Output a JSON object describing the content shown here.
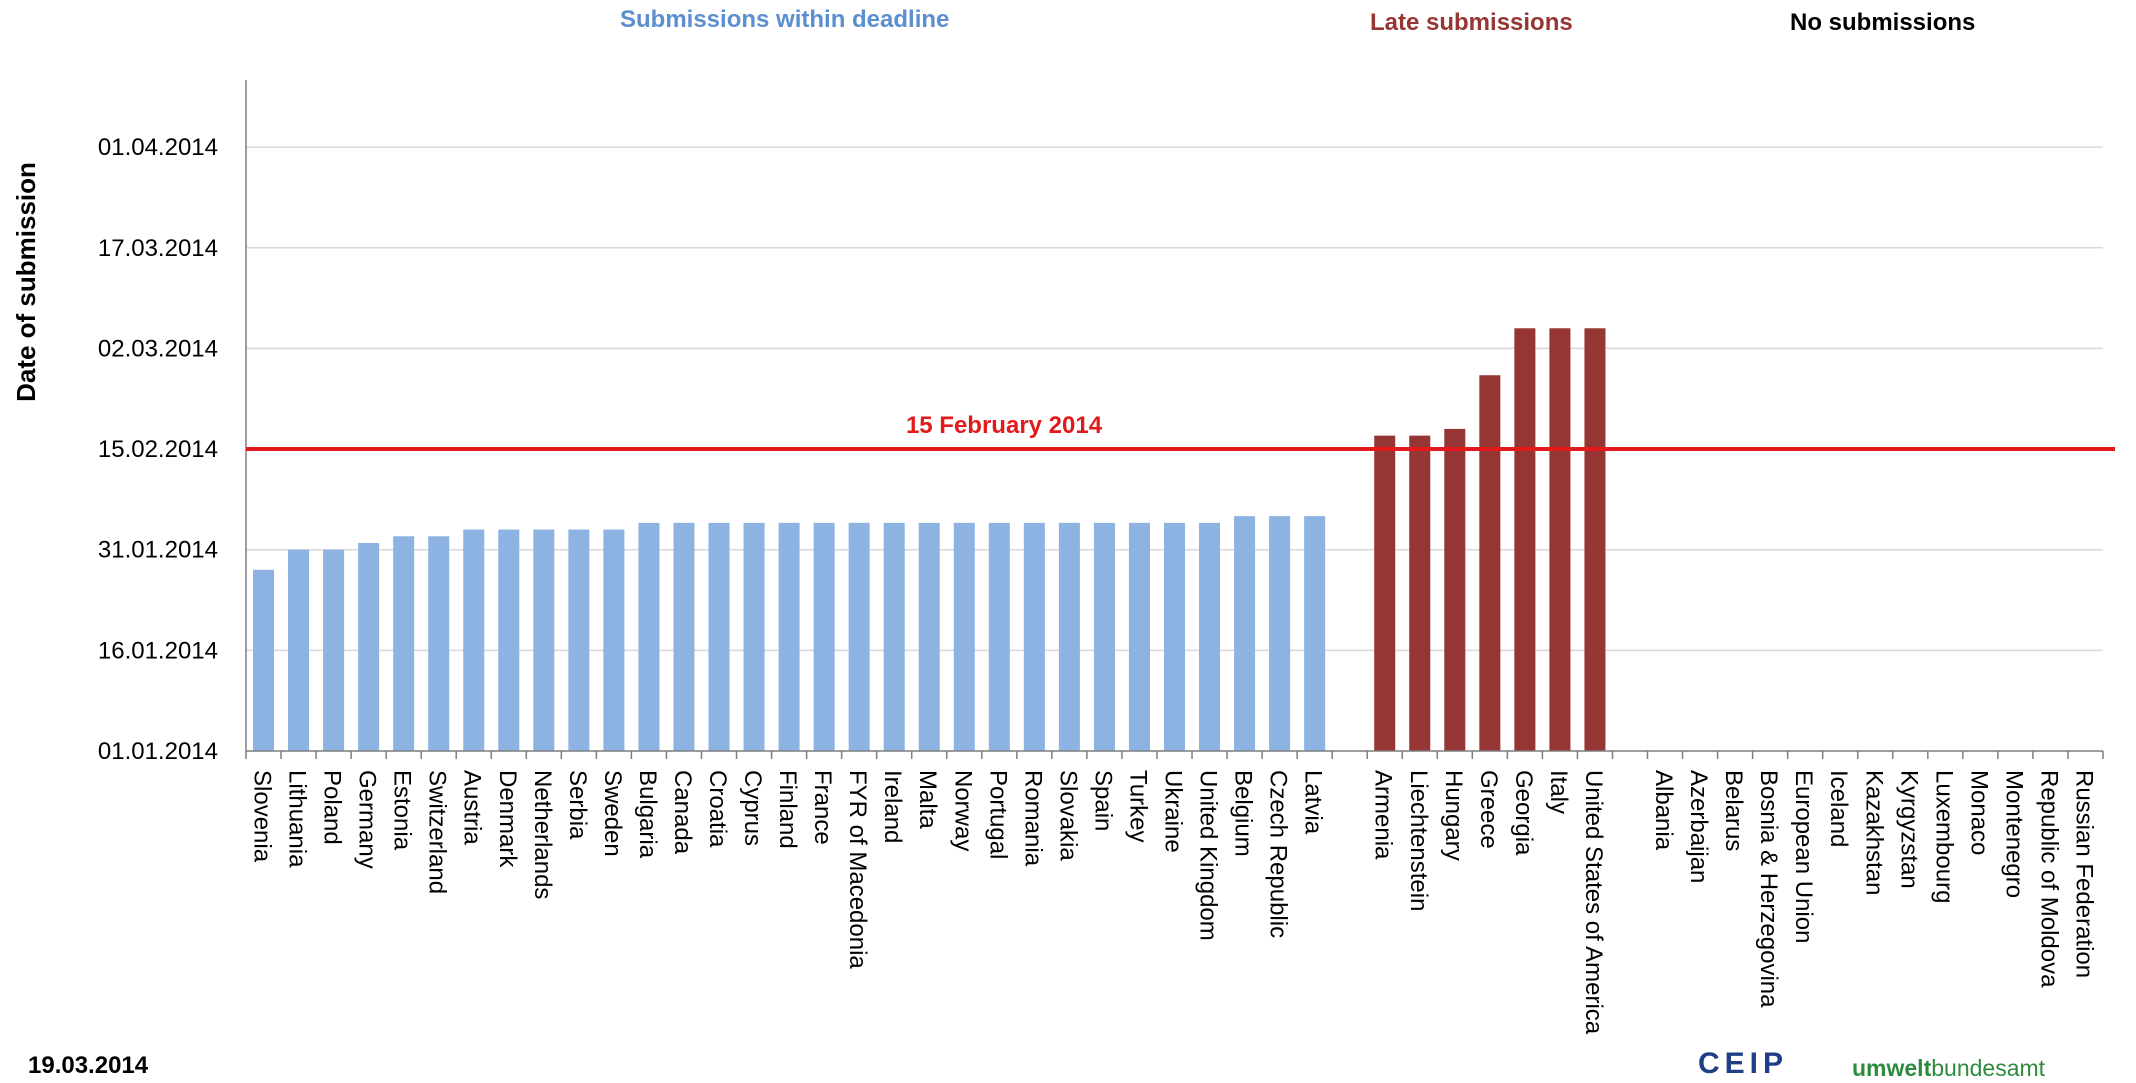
{
  "chart_data": {
    "type": "bar",
    "ylabel": "Date of submission",
    "y_ticks": [
      "01.01.2014",
      "16.01.2014",
      "31.01.2014",
      "15.02.2014",
      "02.03.2014",
      "17.03.2014",
      "01.04.2014"
    ],
    "ylim": [
      "2014-01-01",
      "2014-04-11"
    ],
    "deadline": {
      "date": "2014-02-15",
      "label": "15 February 2014",
      "color": "#e31a1c"
    },
    "grid": true,
    "groups": [
      {
        "name": "Submissions within deadline",
        "color": "#8db3e2",
        "title_color": "#5b8fd0",
        "categories": [
          "Slovenia",
          "Lithuania",
          "Poland",
          "Germany",
          "Estonia",
          "Switzerland",
          "Austria",
          "Denmark",
          "Netherlands",
          "Serbia",
          "Sweden",
          "Bulgaria",
          "Canada",
          "Croatia",
          "Cyprus",
          "Finland",
          "France",
          "FYR of Macedonia",
          "Ireland",
          "Malta",
          "Norway",
          "Portugal",
          "Romania",
          "Slovakia",
          "Spain",
          "Turkey",
          "Ukraine",
          "United Kingdom",
          "Belgium",
          "Czech Republic",
          "Latvia"
        ],
        "values": [
          "2014-01-28",
          "2014-01-31",
          "2014-01-31",
          "2014-02-01",
          "2014-02-02",
          "2014-02-02",
          "2014-02-03",
          "2014-02-03",
          "2014-02-03",
          "2014-02-03",
          "2014-02-03",
          "2014-02-04",
          "2014-02-04",
          "2014-02-04",
          "2014-02-04",
          "2014-02-04",
          "2014-02-04",
          "2014-02-04",
          "2014-02-04",
          "2014-02-04",
          "2014-02-04",
          "2014-02-04",
          "2014-02-04",
          "2014-02-04",
          "2014-02-04",
          "2014-02-04",
          "2014-02-04",
          "2014-02-04",
          "2014-02-05",
          "2014-02-05",
          "2014-02-05"
        ]
      },
      {
        "name": "Late submissions",
        "color": "#963634",
        "title_color": "#963634",
        "categories": [
          "Armenia",
          "Liechtenstein",
          "Hungary",
          "Greece",
          "Georgia",
          "Italy",
          "United States of America"
        ],
        "values": [
          "2014-02-17",
          "2014-02-17",
          "2014-02-18",
          "2014-02-26",
          "2014-03-05",
          "2014-03-05",
          "2014-03-05"
        ]
      },
      {
        "name": "No submissions",
        "color": "#ffffff",
        "title_color": "#000000",
        "categories": [
          "Albania",
          "Azerbaijan",
          "Belarus",
          "Bosnia & Herzegovina",
          "European Union",
          "Iceland",
          "Kazakhstan",
          "Kyrgyzstan",
          "Luxembourg",
          "Monaco",
          "Montenegro",
          "Republic of Moldova",
          "Russian Federation"
        ],
        "values": [
          null,
          null,
          null,
          null,
          null,
          null,
          null,
          null,
          null,
          null,
          null,
          null,
          null
        ]
      }
    ]
  },
  "footer": {
    "date": "19.03.2014",
    "logo_ceip": "CEIP",
    "logo_uba_bold": "umwelt",
    "logo_uba_rest": "bundesamt"
  }
}
